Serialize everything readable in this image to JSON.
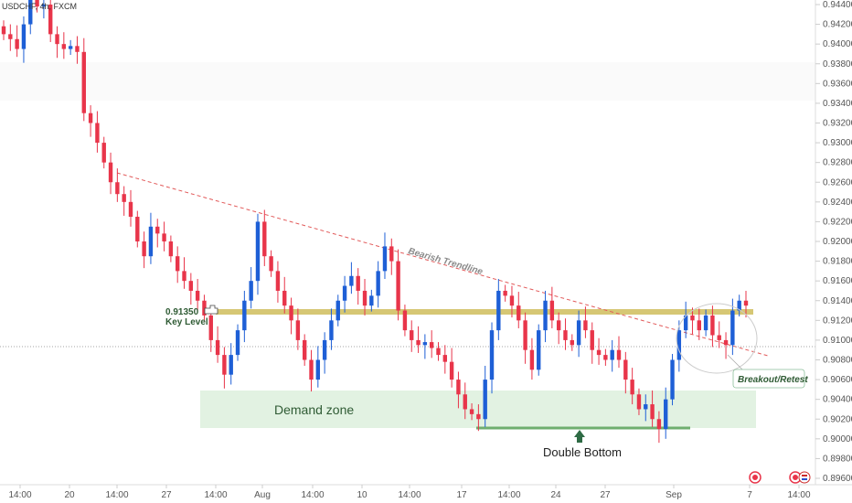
{
  "symbol": "USDCHF, 4h, FXCM",
  "colors": {
    "up": "#1e5fd6",
    "down": "#e8354a",
    "key_level": "#c8b455",
    "demand_zone": "#e2f2e2",
    "demand_text": "#2f5b34",
    "double_bottom_line": "#6fae6f",
    "arrow": "#2e6b45",
    "trendline": "#e25a5a",
    "grid": "#f0f0f0"
  },
  "chart_data": {
    "type": "candlestick",
    "y_axis": {
      "ticks": [
        "0.94400",
        "0.94200",
        "0.94000",
        "0.93800",
        "0.93600",
        "0.93400",
        "0.93200",
        "0.93000",
        "0.92800",
        "0.92600",
        "0.92400",
        "0.92200",
        "0.92000",
        "0.91800",
        "0.91600",
        "0.91400",
        "0.91200",
        "0.91000",
        "0.90800",
        "0.90600",
        "0.90400",
        "0.90200",
        "0.90000",
        "0.89800",
        "0.89600"
      ],
      "ylim": [
        0.8952,
        0.9446
      ]
    },
    "x_axis": {
      "labels": [
        "14:00",
        "20",
        "14:00",
        "27",
        "14:00",
        "Aug",
        "14:00",
        "10",
        "14:00",
        "17",
        "14:00",
        "24",
        "27",
        "Sep",
        "7",
        "14:00"
      ]
    },
    "candles_close_path": [
      0.941,
      0.9405,
      0.9395,
      0.942,
      0.9445,
      0.9438,
      0.944,
      0.941,
      0.94,
      0.9395,
      0.9398,
      0.9392,
      0.933,
      0.932,
      0.93,
      0.928,
      0.926,
      0.9248,
      0.924,
      0.9225,
      0.92,
      0.9185,
      0.9215,
      0.9208,
      0.92,
      0.9185,
      0.917,
      0.916,
      0.915,
      0.914,
      0.9125,
      0.91,
      0.9085,
      0.9065,
      0.9085,
      0.911,
      0.914,
      0.916,
      0.922,
      0.9185,
      0.917,
      0.915,
      0.9135,
      0.912,
      0.91,
      0.908,
      0.906,
      0.908,
      0.91,
      0.912,
      0.914,
      0.9155,
      0.9165,
      0.915,
      0.9135,
      0.9145,
      0.917,
      0.9195,
      0.918,
      0.913,
      0.911,
      0.91,
      0.9095,
      0.9098,
      0.9092,
      0.9085,
      0.9078,
      0.906,
      0.9045,
      0.903,
      0.9025,
      0.902,
      0.906,
      0.911,
      0.915,
      0.9145,
      0.9135,
      0.912,
      0.909,
      0.907,
      0.911,
      0.914,
      0.912,
      0.911,
      0.91,
      0.9095,
      0.912,
      0.911,
      0.909,
      0.9085,
      0.908,
      0.909,
      0.908,
      0.906,
      0.9045,
      0.903,
      0.9035,
      0.902,
      0.901,
      0.904,
      0.908,
      0.911,
      0.9125,
      0.912,
      0.911,
      0.9125,
      0.9105,
      0.91,
      0.9095,
      0.913,
      0.914,
      0.9135
    ],
    "key_level": {
      "value": 0.9135,
      "label_value": "0.91350",
      "label_name": "Key Level"
    },
    "demand_zone": {
      "y0": 0.901,
      "y1": 0.905,
      "label": "Demand zone"
    },
    "double_bottom": {
      "value": 0.9011,
      "label": "Double Bottom"
    },
    "trendline": {
      "label": "Bearish Trendline"
    },
    "breakout_label": "Breakout/Retest",
    "price_line": 0.9094
  }
}
